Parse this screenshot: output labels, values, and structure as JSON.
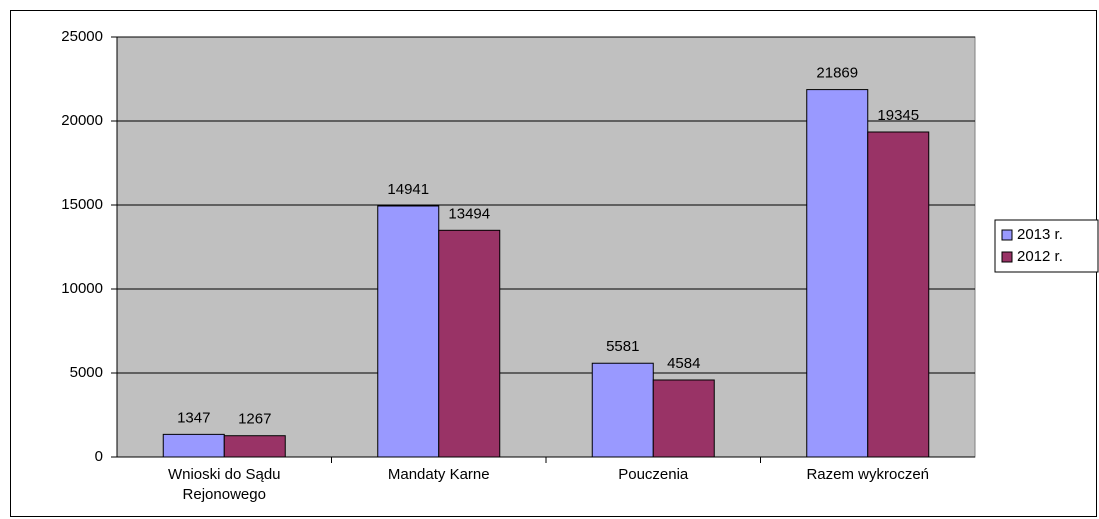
{
  "chart_data": {
    "type": "bar",
    "categories": [
      "Wnioski do Sądu Rejonowego",
      "Mandaty Karne",
      "Pouczenia",
      "Razem wykroczeń"
    ],
    "series": [
      {
        "name": "2013 r.",
        "color": "#9999ff",
        "values": [
          1347,
          14941,
          5581,
          21869
        ]
      },
      {
        "name": "2012 r.",
        "color": "#993366",
        "values": [
          1267,
          13494,
          4584,
          19345
        ]
      }
    ],
    "ylim": [
      0,
      25000
    ],
    "yticks": [
      0,
      5000,
      10000,
      15000,
      20000,
      25000
    ],
    "grid": true,
    "legend": "right"
  }
}
